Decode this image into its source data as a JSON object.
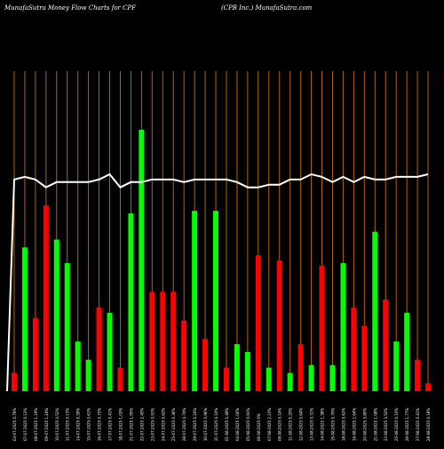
{
  "header": {
    "left": "MunafaSutra  Money Flow  Charts for CPF",
    "right": "(CPB Inc.) MunafaSutra.com"
  },
  "colors": {
    "background": "#000000",
    "grid": "#b8620a",
    "up": "#00ff00",
    "down": "#ff0000",
    "line": "#ffffff",
    "label": "#ffffff"
  },
  "chart_data": {
    "type": "bar",
    "title": "",
    "xlabel": "",
    "ylabel": "",
    "grid": true,
    "legend": "none",
    "ylim": [
      0,
      100
    ],
    "categories": [
      "03-07-2025 0.79%",
      "07-07-2025 0.13%",
      "08-07-2025 1.19%",
      "09-07-2025 1.24%",
      "10-07-2025 0.52%",
      "11-07-2025 0.13%",
      "14-07-2025 0.39%",
      "15-07-2025 0.61%",
      "16-07-2025 0.73%",
      "17-07-2025 0.41%",
      "18-07-2025 1.03%",
      "21-07-2025 1.95%",
      "22-07-2025 2.45%",
      "23-07-2025 0.91%",
      "24-07-2025 0.62%",
      "25-07-2025 0.36%",
      "28-07-2025 0.74%",
      "29-07-2025 0.24%",
      "30-07-2025 0.96%",
      "31-07-2025 0.10%",
      "01-08-2025 0.48%",
      "04-08-2025 1.00%",
      "05-08-2025 0.91%",
      "06-08-2025 0%",
      "07-08-2025 2.23%",
      "08-08-2025 0.14%",
      "11-08-2025 0.25%",
      "12-08-2025 0.64%",
      "13-08-2025 0.31%",
      "14-08-2025 1.38%",
      "15-08-2025 0.70%",
      "18-08-2025 0.62%",
      "19-08-2025 2.64%",
      "20-08-2025 3.80%",
      "21-08-2025 1.08%",
      "22-08-2025 3.52%",
      "25-08-2025 0.10%",
      "26-08-2025 1.77%",
      "27-08-2025 0.41%",
      "28-08-2025 0.18%"
    ],
    "series": [
      {
        "type": "bar",
        "direction": [
          "down",
          "up",
          "down",
          "down",
          "up",
          "up",
          "up",
          "up",
          "down",
          "up",
          "down",
          "up",
          "up",
          "down",
          "down",
          "down",
          "down",
          "up",
          "down",
          "up",
          "down",
          "up",
          "up",
          "down",
          "up",
          "down",
          "up",
          "down",
          "up",
          "down",
          "up",
          "up",
          "down",
          "down",
          "up",
          "down",
          "up",
          "up",
          "down",
          "down"
        ],
        "values": [
          7,
          55,
          28,
          71,
          58,
          49,
          19,
          12,
          32,
          30,
          9,
          68,
          100,
          38,
          38,
          38,
          27,
          69,
          20,
          69,
          9,
          18,
          15,
          52,
          9,
          50,
          7,
          18,
          10,
          48,
          10,
          49,
          32,
          25,
          61,
          35,
          19,
          30,
          12,
          3
        ]
      },
      {
        "type": "line",
        "values": [
          81,
          82,
          81,
          78,
          80,
          80,
          80,
          80,
          81,
          83,
          78,
          80,
          80,
          81,
          81,
          81,
          80,
          81,
          81,
          81,
          81,
          80,
          78,
          78,
          79,
          79,
          81,
          81,
          83,
          82,
          80,
          82,
          80,
          82,
          81,
          81,
          82,
          82,
          82,
          83
        ]
      }
    ]
  }
}
